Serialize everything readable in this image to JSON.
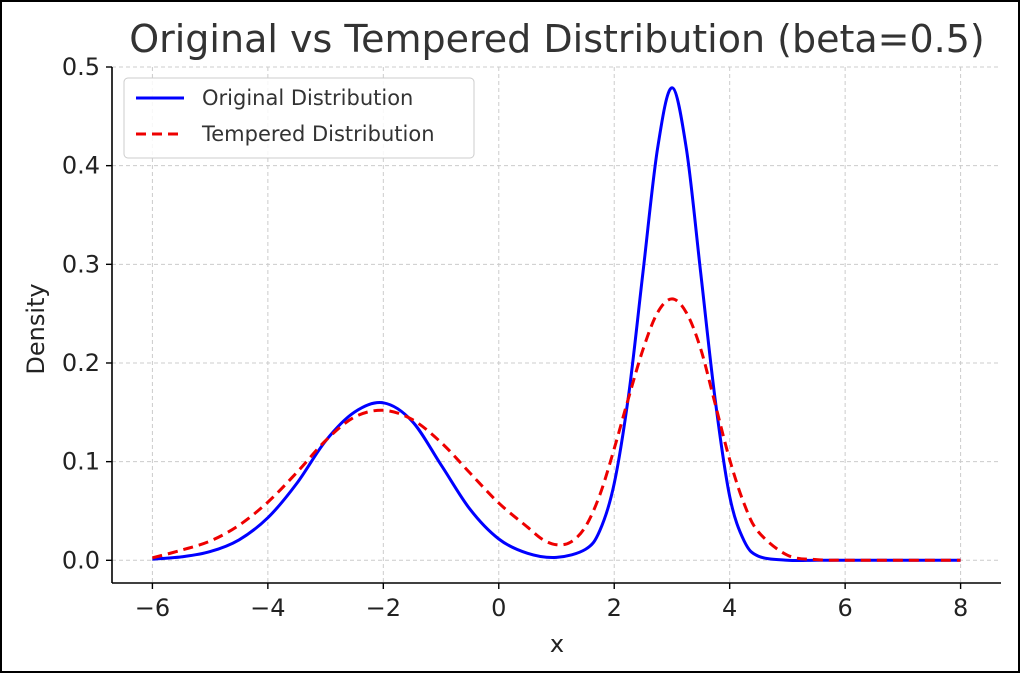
{
  "chart_data": {
    "type": "line",
    "title": "Original vs Tempered Distribution (beta=0.5)",
    "xlabel": "x",
    "ylabel": "Density",
    "xlim": [
      -6.7,
      8.7
    ],
    "ylim": [
      -0.023,
      0.5
    ],
    "xticks": [
      -6,
      -4,
      -2,
      0,
      2,
      4,
      6,
      8
    ],
    "yticks": [
      0.0,
      0.1,
      0.2,
      0.3,
      0.4,
      0.5
    ],
    "xtick_labels": [
      "−6",
      "−4",
      "−2",
      "0",
      "2",
      "4",
      "6",
      "8"
    ],
    "ytick_labels": [
      "0.0",
      "0.1",
      "0.2",
      "0.3",
      "0.4",
      "0.5"
    ],
    "grid": true,
    "legend_position": "top-left",
    "series": [
      {
        "name": "Original Distribution",
        "color": "#0000ff",
        "style": "solid",
        "x": [
          -6.0,
          -5.5,
          -5.0,
          -4.5,
          -4.0,
          -3.5,
          -3.0,
          -2.5,
          -2.0,
          -1.5,
          -1.0,
          -0.5,
          0.0,
          0.5,
          1.0,
          1.5,
          1.75,
          2.0,
          2.25,
          2.5,
          2.75,
          3.0,
          3.25,
          3.5,
          3.75,
          4.0,
          4.25,
          4.5,
          5.0,
          5.5,
          6.0,
          7.0,
          8.0
        ],
        "y": [
          0.0011,
          0.0035,
          0.0088,
          0.0207,
          0.0432,
          0.0778,
          0.121,
          0.1502,
          0.1596,
          0.1409,
          0.0968,
          0.0519,
          0.0216,
          0.0071,
          0.0029,
          0.0111,
          0.0301,
          0.0777,
          0.1679,
          0.293,
          0.417,
          0.4789,
          0.417,
          0.2905,
          0.162,
          0.0648,
          0.0197,
          0.0042,
          0.0001,
          0.0,
          0.0,
          0.0,
          0.0
        ]
      },
      {
        "name": "Tempered Distribution",
        "color": "#ee0000",
        "style": "dashed",
        "x": [
          -6.0,
          -5.5,
          -5.0,
          -4.5,
          -4.0,
          -3.5,
          -3.0,
          -2.5,
          -2.0,
          -1.5,
          -1.0,
          -0.5,
          0.0,
          0.5,
          0.75,
          1.0,
          1.25,
          1.5,
          1.75,
          2.0,
          2.25,
          2.5,
          2.75,
          3.0,
          3.25,
          3.5,
          3.75,
          4.0,
          4.25,
          4.5,
          5.0,
          5.5,
          6.0,
          7.0,
          8.0
        ],
        "y": [
          0.0025,
          0.0102,
          0.0195,
          0.0355,
          0.059,
          0.0889,
          0.1213,
          0.1451,
          0.152,
          0.1427,
          0.1195,
          0.0886,
          0.058,
          0.0336,
          0.0215,
          0.0158,
          0.0186,
          0.034,
          0.0662,
          0.1131,
          0.165,
          0.214,
          0.251,
          0.265,
          0.251,
          0.214,
          0.158,
          0.102,
          0.0574,
          0.0287,
          0.0052,
          0.0007,
          0.0001,
          0.0,
          0.0
        ]
      }
    ]
  }
}
